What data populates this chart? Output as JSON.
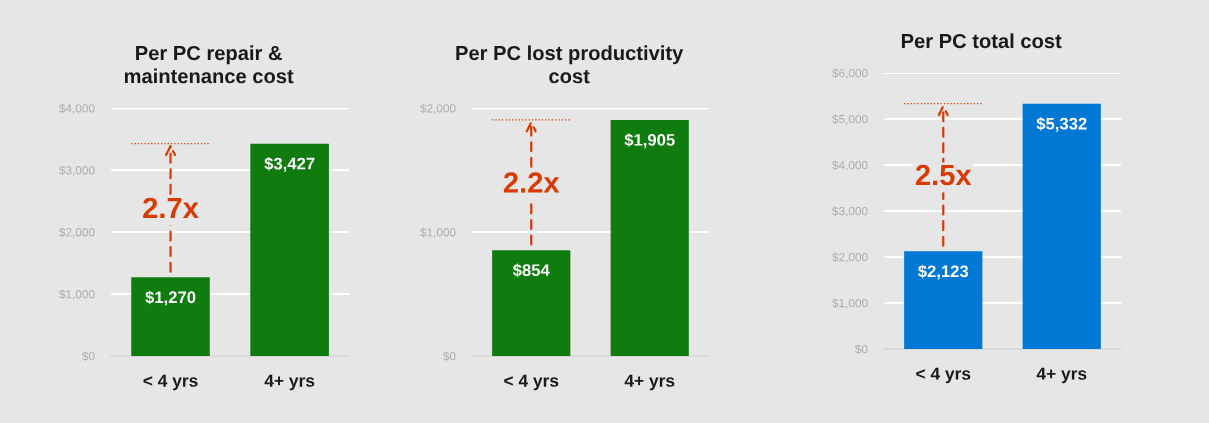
{
  "chart_data": [
    {
      "type": "bar",
      "title": "Per PC repair &\nmaintenance cost",
      "categories": [
        "< 4 yrs",
        "4+ yrs"
      ],
      "series": [
        {
          "color": "#107c10",
          "values": [
            1270,
            3427
          ],
          "value_labels": [
            "$1,270",
            "$3,427"
          ]
        }
      ],
      "ylim": [
        0,
        4000
      ],
      "yticks": [
        {
          "value": 0,
          "label": "$0"
        },
        {
          "value": 1000,
          "label": "$1,000"
        },
        {
          "value": 2000,
          "label": "$2,000"
        },
        {
          "value": 3000,
          "label": "$3,000"
        },
        {
          "value": 4000,
          "label": "$4,000"
        }
      ],
      "grid": "y",
      "ref_lines": [
        {
          "axis": "y",
          "value": 3427,
          "color": "#d83b01",
          "line_style": "dotted"
        }
      ],
      "annotations": [
        "2.7x"
      ]
    },
    {
      "type": "bar",
      "title": "Per PC lost productivity\ncost",
      "categories": [
        "< 4 yrs",
        "4+ yrs"
      ],
      "series": [
        {
          "color": "#107c10",
          "values": [
            854,
            1905
          ],
          "value_labels": [
            "$854",
            "$1,905"
          ]
        }
      ],
      "ylim": [
        0,
        2000
      ],
      "yticks": [
        {
          "value": 0,
          "label": "$0"
        },
        {
          "value": 1000,
          "label": "$1,000"
        },
        {
          "value": 2000,
          "label": "$2,000"
        }
      ],
      "grid": "y",
      "ref_lines": [
        {
          "axis": "y",
          "value": 1905,
          "color": "#d83b01",
          "line_style": "dotted"
        }
      ],
      "annotations": [
        "2.2x"
      ]
    },
    {
      "type": "bar",
      "title": "Per PC total cost",
      "categories": [
        "< 4 yrs",
        "4+ yrs"
      ],
      "series": [
        {
          "color": "#0078d4",
          "values": [
            2123,
            5332
          ],
          "value_labels": [
            "$2,123",
            "$5,332"
          ]
        }
      ],
      "ylim": [
        0,
        6000
      ],
      "yticks": [
        {
          "value": 0,
          "label": "$0"
        },
        {
          "value": 1000,
          "label": "$1,000"
        },
        {
          "value": 2000,
          "label": "$2,000"
        },
        {
          "value": 3000,
          "label": "$3,000"
        },
        {
          "value": 4000,
          "label": "$4,000"
        },
        {
          "value": 5000,
          "label": "$5,000"
        },
        {
          "value": 6000,
          "label": "$6,000"
        }
      ],
      "grid": "y",
      "ref_lines": [
        {
          "axis": "y",
          "value": 5332,
          "color": "#d83b01",
          "line_style": "dotted"
        }
      ],
      "annotations": [
        "2.5x"
      ]
    }
  ]
}
